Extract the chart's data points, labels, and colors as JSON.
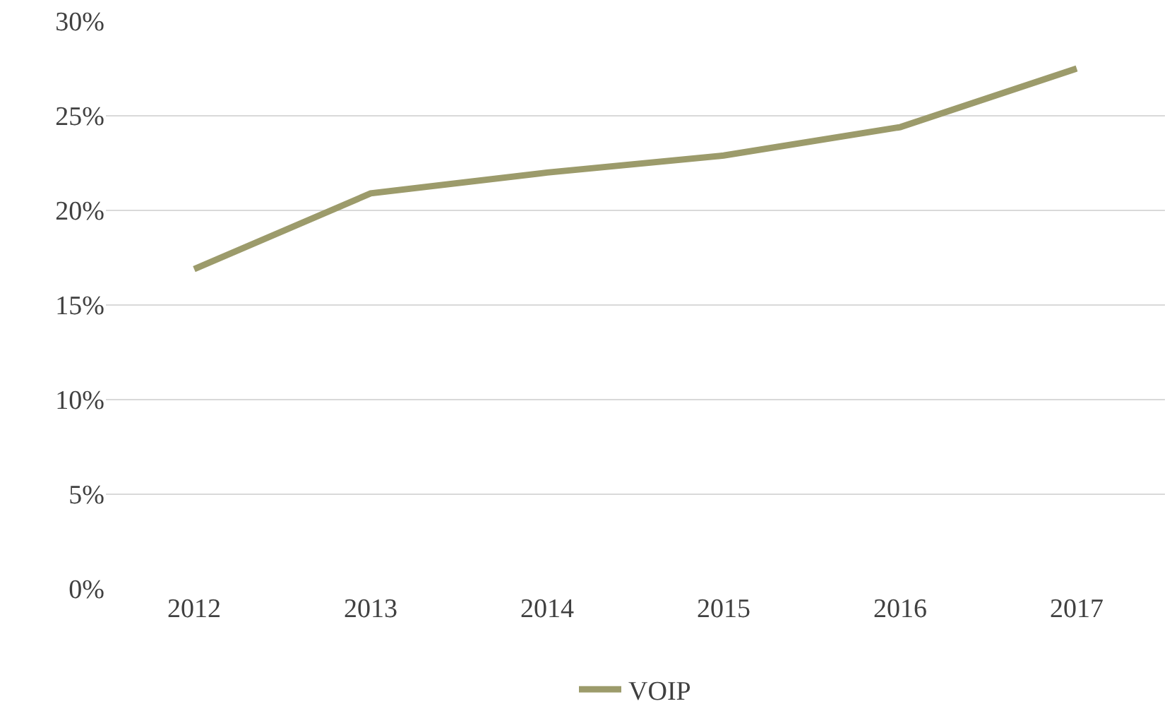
{
  "chart_data": {
    "type": "line",
    "categories": [
      "2012",
      "2013",
      "2014",
      "2015",
      "2016",
      "2017"
    ],
    "series": [
      {
        "name": "VOIP",
        "color": "#9c9b6b",
        "values": [
          16.9,
          20.9,
          22.0,
          22.9,
          24.4,
          27.5
        ]
      }
    ],
    "ylim": [
      0,
      30
    ],
    "yticks": [
      {
        "value": 0,
        "label": "0%"
      },
      {
        "value": 5,
        "label": "5%"
      },
      {
        "value": 10,
        "label": "10%"
      },
      {
        "value": 15,
        "label": "15%"
      },
      {
        "value": 20,
        "label": "20%"
      },
      {
        "value": 25,
        "label": "25%"
      },
      {
        "value": 30,
        "label": "30%"
      }
    ],
    "grid": "y",
    "legend": "bottom",
    "marker": "none",
    "line_style": "solid"
  }
}
